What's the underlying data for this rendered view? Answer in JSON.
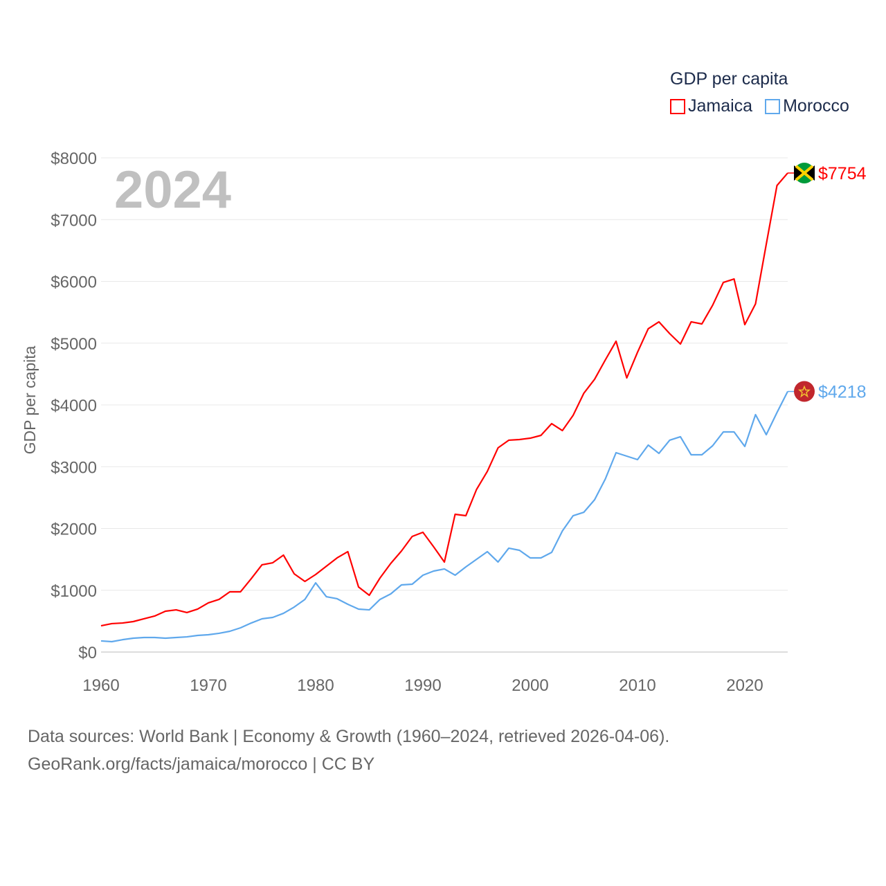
{
  "chart_data": {
    "type": "line",
    "title": "GDP per capita",
    "ylabel": "GDP per capita",
    "xlabel": "",
    "year_label": "2024",
    "xlim": [
      1960,
      2024
    ],
    "ylim": [
      0,
      8000
    ],
    "x_ticks": [
      "1960",
      "1970",
      "1980",
      "1990",
      "2000",
      "2010",
      "2020"
    ],
    "y_ticks": [
      "$0",
      "$1000",
      "$2000",
      "$3000",
      "$4000",
      "$5000",
      "$6000",
      "$7000",
      "$8000"
    ],
    "grid": true,
    "legend_position": "top-right",
    "x": [
      1960,
      1961,
      1962,
      1963,
      1964,
      1965,
      1966,
      1967,
      1968,
      1969,
      1970,
      1971,
      1972,
      1973,
      1974,
      1975,
      1976,
      1977,
      1978,
      1979,
      1980,
      1981,
      1982,
      1983,
      1984,
      1985,
      1986,
      1987,
      1988,
      1989,
      1990,
      1991,
      1992,
      1993,
      1994,
      1995,
      1996,
      1997,
      1998,
      1999,
      2000,
      2001,
      2002,
      2003,
      2004,
      2005,
      2006,
      2007,
      2008,
      2009,
      2010,
      2011,
      2012,
      2013,
      2014,
      2015,
      2016,
      2017,
      2018,
      2019,
      2020,
      2021,
      2022,
      2023,
      2024
    ],
    "series": [
      {
        "name": "Jamaica",
        "color": "#ff0000",
        "end_label": "$7754",
        "values": [
          425,
          460,
          470,
          493,
          538,
          583,
          661,
          683,
          639,
          695,
          796,
          852,
          975,
          975,
          1188,
          1412,
          1445,
          1569,
          1266,
          1143,
          1255,
          1389,
          1524,
          1625,
          1053,
          919,
          1199,
          1434,
          1636,
          1871,
          1938,
          1703,
          1457,
          2230,
          2207,
          2633,
          2924,
          3305,
          3429,
          3440,
          3462,
          3507,
          3697,
          3585,
          3832,
          4190,
          4415,
          4728,
          5031,
          4437,
          4852,
          5233,
          5345,
          5154,
          4986,
          5345,
          5311,
          5613,
          5983,
          6039,
          5300,
          5636,
          6600,
          7552,
          7754
        ]
      },
      {
        "name": "Morocco",
        "color": "#5fa8ec",
        "end_label": "$4218",
        "values": [
          180,
          168,
          200,
          224,
          235,
          235,
          224,
          235,
          246,
          269,
          280,
          303,
          336,
          392,
          470,
          538,
          560,
          627,
          728,
          852,
          1120,
          896,
          863,
          773,
          695,
          683,
          852,
          941,
          1087,
          1098,
          1244,
          1311,
          1345,
          1244,
          1378,
          1501,
          1625,
          1457,
          1681,
          1647,
          1524,
          1524,
          1613,
          1961,
          2207,
          2263,
          2465,
          2801,
          3227,
          3171,
          3115,
          3350,
          3216,
          3429,
          3485,
          3193,
          3193,
          3339,
          3563,
          3563,
          3328,
          3843,
          3518,
          3877,
          4218
        ]
      }
    ]
  },
  "icons": {
    "jamaica": "jamaica-flag-icon",
    "morocco": "morocco-flag-icon"
  },
  "footer": {
    "line1": "Data sources: World Bank | Economy & Growth (1960–2024, retrieved 2026-04-06).",
    "line2": "GeoRank.org/facts/jamaica/morocco | CC BY"
  }
}
